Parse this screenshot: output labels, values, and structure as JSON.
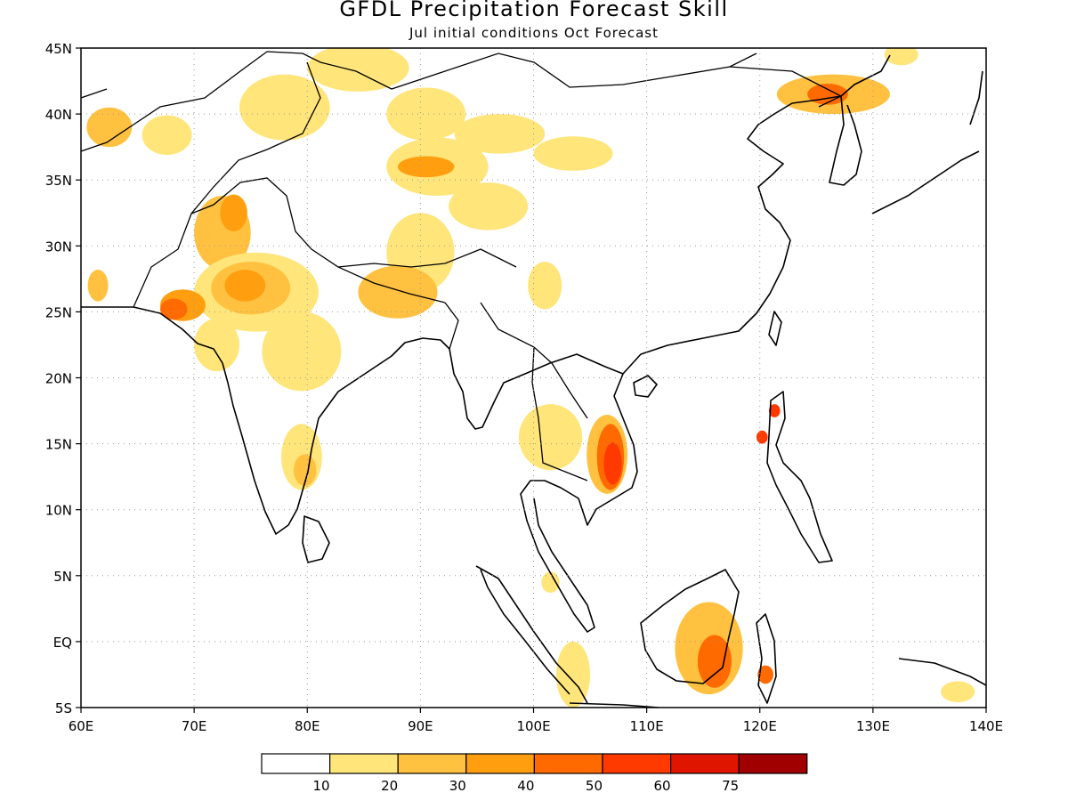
{
  "title": "GFDL Precipitation Forecast Skill",
  "subtitle": "Jul initial conditions  Oct Forecast",
  "axes": {
    "lon_range": [
      60,
      140
    ],
    "lat_range": [
      -5,
      45
    ],
    "x_ticks": [
      {
        "value": 60,
        "label": "60E"
      },
      {
        "value": 70,
        "label": "70E"
      },
      {
        "value": 80,
        "label": "80E"
      },
      {
        "value": 90,
        "label": "90E"
      },
      {
        "value": 100,
        "label": "100E"
      },
      {
        "value": 110,
        "label": "110E"
      },
      {
        "value": 120,
        "label": "120E"
      },
      {
        "value": 130,
        "label": "130E"
      },
      {
        "value": 140,
        "label": "140E"
      }
    ],
    "y_ticks": [
      {
        "value": 45,
        "label": "45N"
      },
      {
        "value": 40,
        "label": "40N"
      },
      {
        "value": 35,
        "label": "35N"
      },
      {
        "value": 30,
        "label": "30N"
      },
      {
        "value": 25,
        "label": "25N"
      },
      {
        "value": 20,
        "label": "20N"
      },
      {
        "value": 15,
        "label": "15N"
      },
      {
        "value": 10,
        "label": "10N"
      },
      {
        "value": 5,
        "label": "5N"
      },
      {
        "value": 0,
        "label": "EQ"
      },
      {
        "value": -5,
        "label": "5S"
      }
    ],
    "grid": "dotted"
  },
  "colorbar": {
    "colors": [
      "#ffffff",
      "#ffe57a",
      "#ffc13f",
      "#ff9f0f",
      "#ff6a00",
      "#ff3a00",
      "#e01500",
      "#a00000"
    ],
    "labels": [
      "10",
      "20",
      "30",
      "40",
      "50",
      "60",
      "75"
    ]
  },
  "skill_regions": [
    {
      "lon": 67.6,
      "lat": 38.4,
      "rx": 2.2,
      "ry": 1.5,
      "level": 1
    },
    {
      "lon": 78.0,
      "lat": 40.5,
      "rx": 4.0,
      "ry": 2.5,
      "level": 1
    },
    {
      "lon": 84.5,
      "lat": 43.5,
      "rx": 4.5,
      "ry": 1.8,
      "level": 1
    },
    {
      "lon": 90.5,
      "lat": 40.0,
      "rx": 3.5,
      "ry": 2.0,
      "level": 1
    },
    {
      "lon": 97.0,
      "lat": 38.5,
      "rx": 4.0,
      "ry": 1.5,
      "level": 1
    },
    {
      "lon": 103.5,
      "lat": 37.0,
      "rx": 3.5,
      "ry": 1.3,
      "level": 1
    },
    {
      "lon": 91.5,
      "lat": 36.0,
      "rx": 4.5,
      "ry": 2.2,
      "level": 1
    },
    {
      "lon": 96.0,
      "lat": 33.0,
      "rx": 3.5,
      "ry": 1.8,
      "level": 1
    },
    {
      "lon": 90.0,
      "lat": 29.5,
      "rx": 3.0,
      "ry": 3.0,
      "level": 1
    },
    {
      "lon": 101.0,
      "lat": 27.0,
      "rx": 1.5,
      "ry": 1.8,
      "level": 1
    },
    {
      "lon": 88.0,
      "lat": 26.5,
      "rx": 3.5,
      "ry": 2.0,
      "level": 2
    },
    {
      "lon": 72.5,
      "lat": 31.0,
      "rx": 2.5,
      "ry": 2.8,
      "level": 2
    },
    {
      "lon": 73.5,
      "lat": 32.5,
      "rx": 1.2,
      "ry": 1.4,
      "level": 3
    },
    {
      "lon": 75.5,
      "lat": 26.5,
      "rx": 5.5,
      "ry": 3.0,
      "level": 1
    },
    {
      "lon": 75.0,
      "lat": 26.8,
      "rx": 3.5,
      "ry": 2.0,
      "level": 2
    },
    {
      "lon": 74.5,
      "lat": 27.0,
      "rx": 1.8,
      "ry": 1.2,
      "level": 3
    },
    {
      "lon": 79.5,
      "lat": 22.0,
      "rx": 3.5,
      "ry": 3.0,
      "level": 1
    },
    {
      "lon": 72.0,
      "lat": 22.5,
      "rx": 2.0,
      "ry": 2.0,
      "level": 1
    },
    {
      "lon": 69.0,
      "lat": 25.5,
      "rx": 2.0,
      "ry": 1.2,
      "level": 3
    },
    {
      "lon": 68.2,
      "lat": 25.2,
      "rx": 1.2,
      "ry": 0.8,
      "level": 4
    },
    {
      "lon": 61.5,
      "lat": 27.0,
      "rx": 0.9,
      "ry": 1.2,
      "level": 2
    },
    {
      "lon": 62.5,
      "lat": 39.0,
      "rx": 2.0,
      "ry": 1.5,
      "level": 2
    },
    {
      "lon": 90.5,
      "lat": 36.0,
      "rx": 2.5,
      "ry": 0.8,
      "level": 3
    },
    {
      "lon": 79.5,
      "lat": 14.0,
      "rx": 1.8,
      "ry": 2.5,
      "level": 1
    },
    {
      "lon": 79.8,
      "lat": 13.0,
      "rx": 1.0,
      "ry": 1.2,
      "level": 2
    },
    {
      "lon": 101.5,
      "lat": 15.5,
      "rx": 2.8,
      "ry": 2.5,
      "level": 1
    },
    {
      "lon": 106.5,
      "lat": 14.2,
      "rx": 1.8,
      "ry": 3.0,
      "level": 2
    },
    {
      "lon": 106.8,
      "lat": 14.0,
      "rx": 1.2,
      "ry": 2.5,
      "level": 4
    },
    {
      "lon": 107.0,
      "lat": 13.5,
      "rx": 0.8,
      "ry": 1.6,
      "level": 5
    },
    {
      "lon": 126.5,
      "lat": 41.5,
      "rx": 5.0,
      "ry": 1.5,
      "level": 2
    },
    {
      "lon": 126.0,
      "lat": 41.5,
      "rx": 1.8,
      "ry": 0.8,
      "level": 4
    },
    {
      "lon": 115.5,
      "lat": -0.5,
      "rx": 3.0,
      "ry": 3.5,
      "level": 2
    },
    {
      "lon": 116.0,
      "lat": -1.5,
      "rx": 1.5,
      "ry": 2.0,
      "level": 4
    },
    {
      "lon": 103.5,
      "lat": -2.5,
      "rx": 1.5,
      "ry": 2.5,
      "level": 1
    },
    {
      "lon": 101.5,
      "lat": 4.5,
      "rx": 0.8,
      "ry": 0.8,
      "level": 1
    },
    {
      "lon": 121.3,
      "lat": 17.5,
      "rx": 0.5,
      "ry": 0.5,
      "level": 5
    },
    {
      "lon": 120.2,
      "lat": 15.5,
      "rx": 0.5,
      "ry": 0.5,
      "level": 5
    },
    {
      "lon": 137.5,
      "lat": -3.8,
      "rx": 1.5,
      "ry": 0.8,
      "level": 1
    },
    {
      "lon": 120.5,
      "lat": -2.5,
      "rx": 0.7,
      "ry": 0.7,
      "level": 4
    },
    {
      "lon": 132.5,
      "lat": 44.5,
      "rx": 1.5,
      "ry": 0.8,
      "level": 1
    }
  ]
}
